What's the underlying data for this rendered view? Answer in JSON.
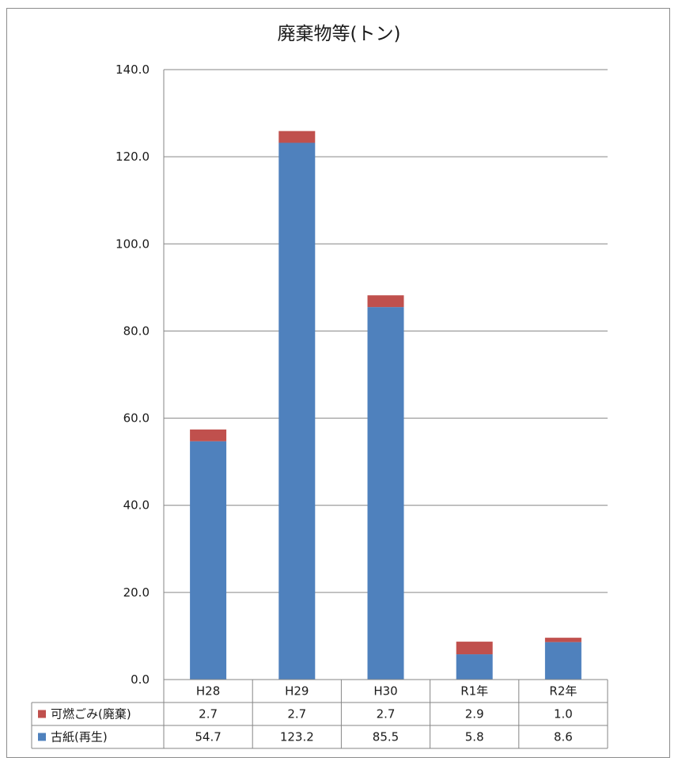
{
  "chart_data": {
    "type": "bar",
    "stacked": true,
    "title": "廃棄物等(トン)",
    "categories": [
      "H28",
      "H29",
      "H30",
      "R1年",
      "R2年"
    ],
    "series": [
      {
        "name": "古紙(再生)",
        "values": [
          54.7,
          123.2,
          85.5,
          5.8,
          8.6
        ],
        "color": "#4f81bd"
      },
      {
        "name": "可燃ごみ(廃棄)",
        "values": [
          2.7,
          2.7,
          2.7,
          2.9,
          1.0
        ],
        "color": "#c0504d"
      }
    ],
    "ylim": [
      0,
      140
    ],
    "yticks": [
      "0.0",
      "20.0",
      "40.0",
      "60.0",
      "80.0",
      "100.0",
      "120.0",
      "140.0"
    ],
    "grid": true,
    "data_table": {
      "rows": [
        {
          "label": "可燃ごみ(廃棄)",
          "values": [
            "2.7",
            "2.7",
            "2.7",
            "2.9",
            "1.0"
          ],
          "color": "#c0504d"
        },
        {
          "label": "古紙(再生)",
          "values": [
            "54.7",
            "123.2",
            "85.5",
            "5.8",
            "8.6"
          ],
          "color": "#4f81bd"
        }
      ]
    }
  }
}
